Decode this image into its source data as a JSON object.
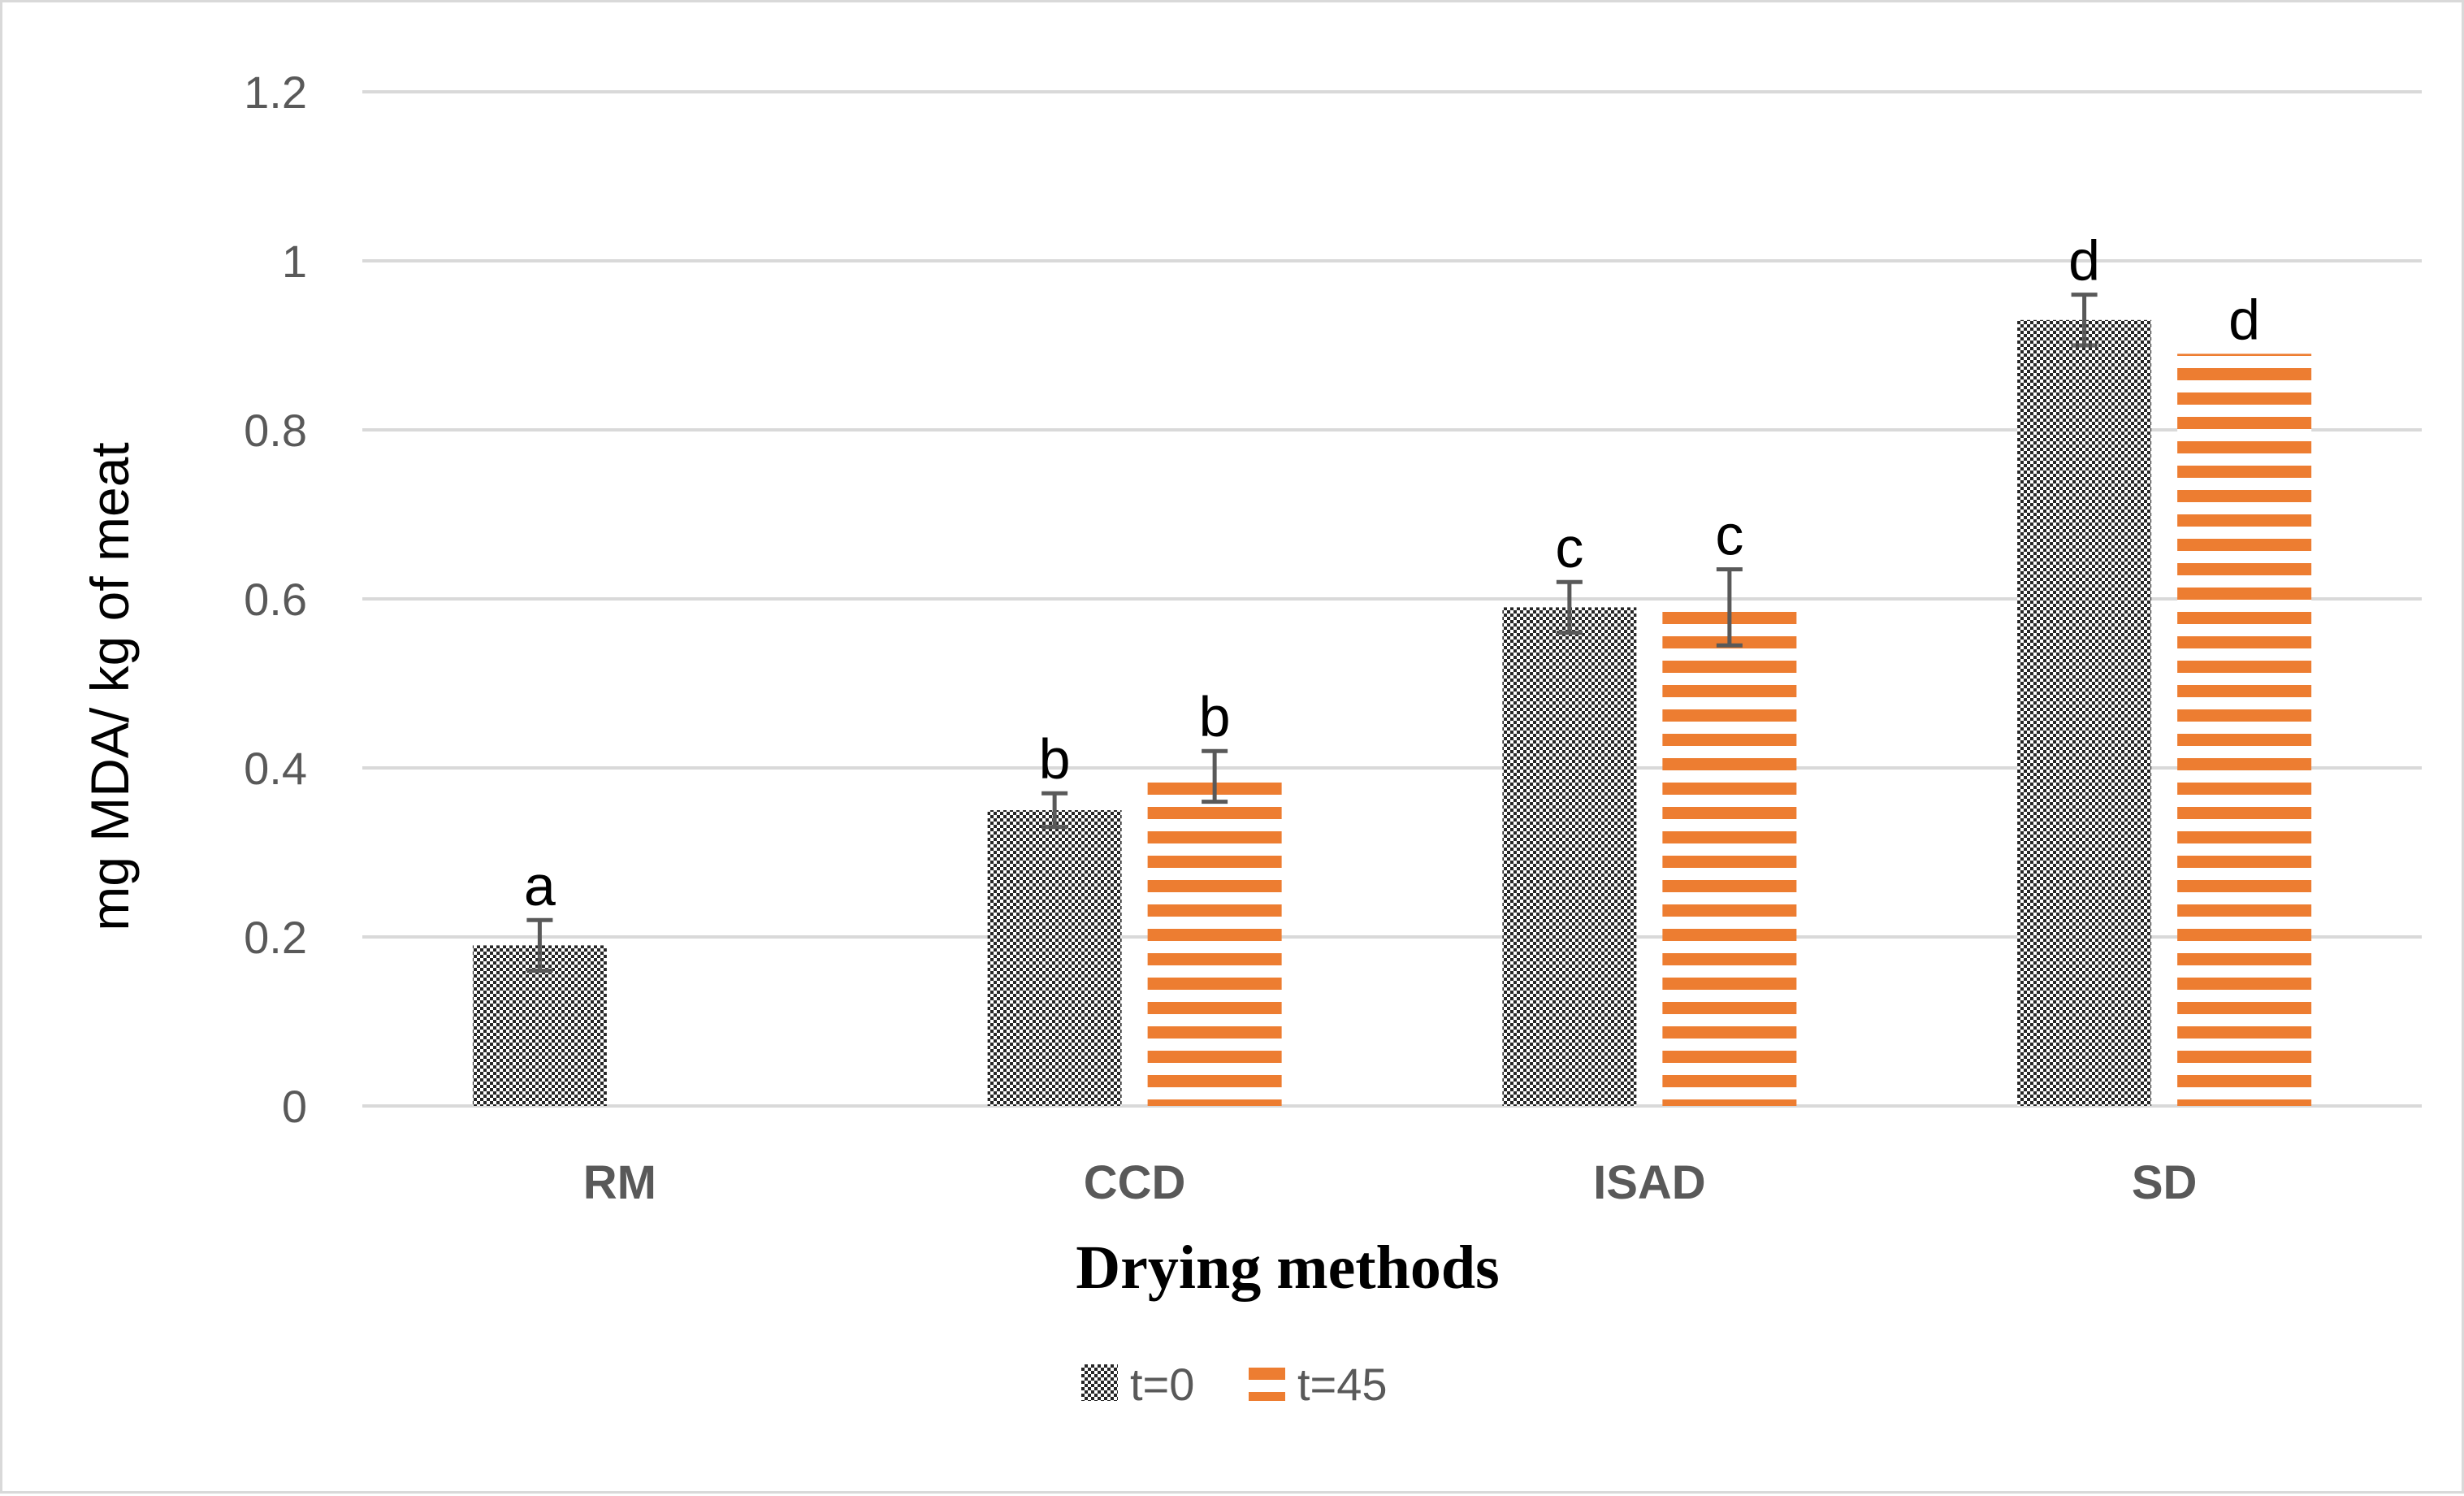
{
  "chart_data": {
    "type": "bar",
    "xlabel": "Drying methods",
    "ylabel": "mg MDA/ kg of meat",
    "ylim": [
      0,
      1.2
    ],
    "yticks": [
      "0",
      "0.2",
      "0.4",
      "0.6",
      "0.8",
      "1",
      "1.2"
    ],
    "ytick_values": [
      0,
      0.2,
      0.4,
      0.6,
      0.8,
      1.0,
      1.2
    ],
    "grid": true,
    "legend_position": "bottom",
    "categories": [
      "RM",
      "CCD",
      "ISAD",
      "SD"
    ],
    "series": [
      {
        "name": "t=0",
        "pattern": "checkered",
        "color": "#262626",
        "values": [
          0.19,
          0.35,
          0.59,
          0.93
        ],
        "errors": [
          0.03,
          0.02,
          0.03,
          0.03
        ],
        "labels": [
          "a",
          "b",
          "c",
          "d"
        ]
      },
      {
        "name": "t=45",
        "pattern": "horizontal-stripes",
        "color": "#ED7D31",
        "values": [
          null,
          0.39,
          0.59,
          0.89
        ],
        "errors": [
          null,
          0.03,
          0.045,
          null
        ],
        "labels": [
          "",
          "b",
          "c",
          "d"
        ]
      }
    ]
  }
}
